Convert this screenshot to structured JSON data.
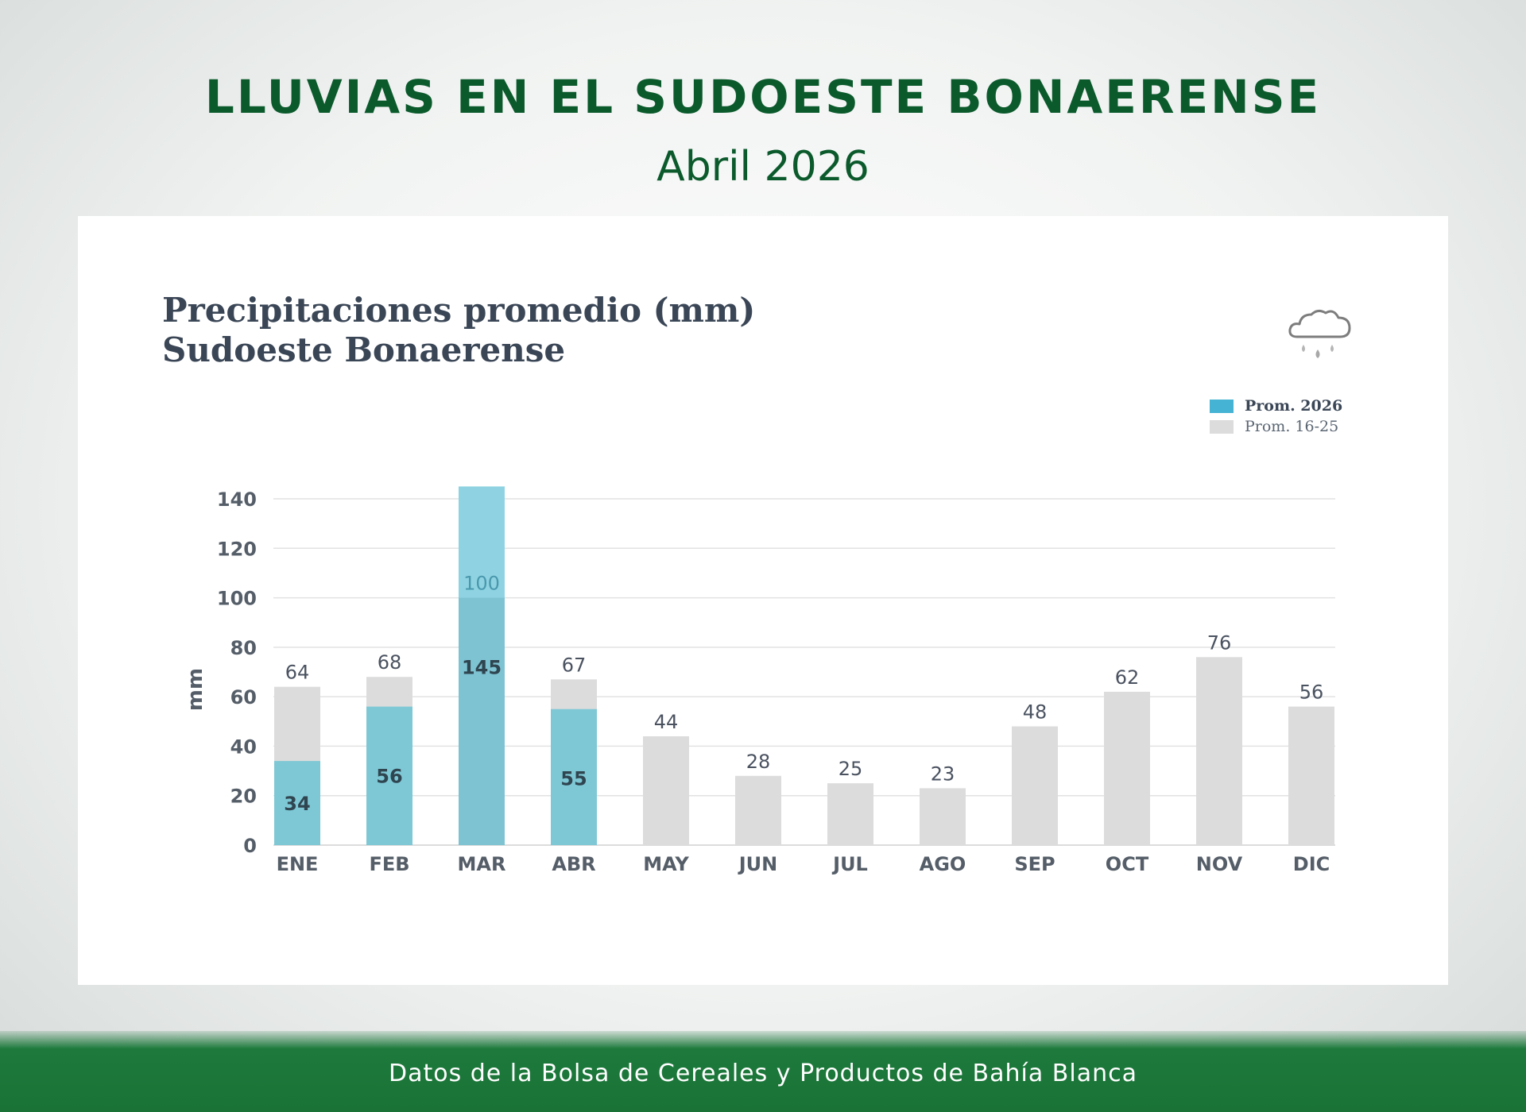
{
  "header": {
    "title": "LLUVIAS EN EL SUDOESTE BONAERENSE",
    "subtitle": "Abril 2026"
  },
  "footer": {
    "text": "Datos de la Bolsa de Cereales y Productos de Bahía Blanca"
  },
  "icon": "rain-cloud-icon",
  "colors": {
    "title_green": "#0b5a2c",
    "footer_green": "#1d7a3c",
    "series_2026": "#7ec8d6",
    "series_avg": "#dcdcdc",
    "legend_2026": "#45b3d4"
  },
  "chart_data": {
    "type": "bar",
    "title": "Precipitaciones promedio (mm)",
    "subtitle": "Sudoeste Bonaerense",
    "ylabel": "mm",
    "xlabel": "",
    "ylim": [
      0,
      140
    ],
    "yticks": [
      0,
      20,
      40,
      60,
      80,
      100,
      120,
      140
    ],
    "grid": true,
    "legend_position": "top-right",
    "categories": [
      "ENE",
      "FEB",
      "MAR",
      "ABR",
      "MAY",
      "JUN",
      "JUL",
      "AGO",
      "SEP",
      "OCT",
      "NOV",
      "DIC"
    ],
    "series": [
      {
        "name": "Prom. 2026",
        "values": [
          34,
          56,
          145,
          55,
          null,
          null,
          null,
          null,
          null,
          null,
          null,
          null
        ]
      },
      {
        "name": "Prom. 16-25",
        "values": [
          64,
          68,
          100,
          67,
          44,
          28,
          25,
          23,
          48,
          62,
          76,
          56
        ]
      }
    ]
  }
}
